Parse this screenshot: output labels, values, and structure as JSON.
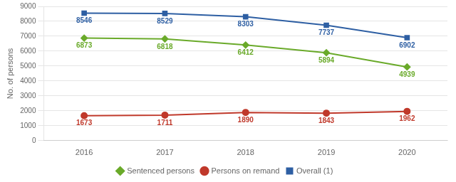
{
  "chart_data": {
    "type": "line",
    "ylabel": "No. of persons",
    "categories": [
      "2016",
      "2017",
      "2018",
      "2019",
      "2020"
    ],
    "series": [
      {
        "name": "Sentenced persons",
        "color": "#6aaa2a",
        "marker": "diamond",
        "values": [
          6873,
          6818,
          6412,
          5894,
          4939
        ]
      },
      {
        "name": "Persons on remand",
        "color": "#c0392b",
        "marker": "circle",
        "values": [
          1673,
          1711,
          1890,
          1843,
          1962
        ]
      },
      {
        "name": "Overall (1)",
        "color": "#2e5fa3",
        "marker": "square",
        "values": [
          8546,
          8529,
          8303,
          7737,
          6902
        ]
      }
    ],
    "ylim": [
      0,
      9000
    ],
    "yticks": [
      0,
      1000,
      2000,
      3000,
      4000,
      5000,
      6000,
      7000,
      8000,
      9000
    ],
    "grid": true,
    "legend": "bottom",
    "data_labels": true
  }
}
